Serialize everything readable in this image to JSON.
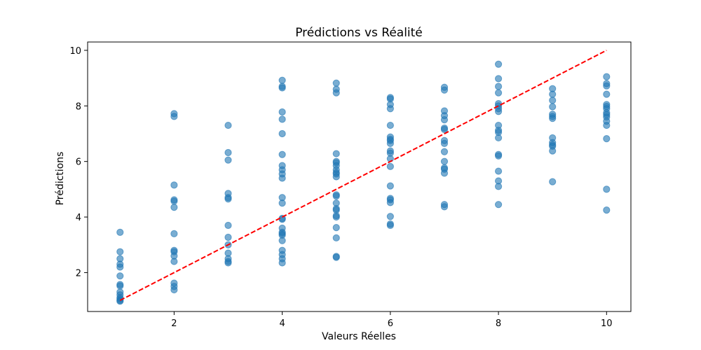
{
  "chart_data": {
    "type": "scatter",
    "title": "Prédictions vs Réalité",
    "xlabel": "Valeurs Réelles",
    "ylabel": "Prédictions",
    "xlim": [
      0.4,
      10.45
    ],
    "ylim": [
      0.6,
      10.3
    ],
    "xticks": [
      2,
      4,
      6,
      8,
      10
    ],
    "yticks": [
      2,
      4,
      6,
      8,
      10
    ],
    "grid": false,
    "legend": "none",
    "point_color": "#1f77b4",
    "point_alpha": 0.6,
    "reference_line": {
      "x": [
        1,
        10
      ],
      "y": [
        1,
        10
      ],
      "color": "#ff0000",
      "style": "dashed"
    },
    "series": [
      {
        "points": [
          [
            1,
            3.45
          ],
          [
            1,
            2.75
          ],
          [
            1,
            2.5
          ],
          [
            1,
            2.3
          ],
          [
            1,
            2.2
          ],
          [
            1,
            1.88
          ],
          [
            1,
            1.57
          ],
          [
            1,
            1.52
          ],
          [
            1,
            1.3
          ],
          [
            1,
            1.2
          ],
          [
            1,
            1.1
          ],
          [
            1,
            1.05
          ],
          [
            1,
            1.0
          ],
          [
            1,
            0.97
          ],
          [
            2,
            7.72
          ],
          [
            2,
            7.62
          ],
          [
            2,
            5.15
          ],
          [
            2,
            4.62
          ],
          [
            2,
            4.57
          ],
          [
            2,
            4.35
          ],
          [
            2,
            3.4
          ],
          [
            2,
            2.8
          ],
          [
            2,
            2.75
          ],
          [
            2,
            2.6
          ],
          [
            2,
            2.4
          ],
          [
            2,
            1.62
          ],
          [
            2,
            1.5
          ],
          [
            2,
            1.38
          ],
          [
            3,
            7.3
          ],
          [
            3,
            6.32
          ],
          [
            3,
            6.05
          ],
          [
            3,
            4.85
          ],
          [
            3,
            4.7
          ],
          [
            3,
            4.65
          ],
          [
            3,
            3.7
          ],
          [
            3,
            3.27
          ],
          [
            3,
            3.0
          ],
          [
            3,
            2.7
          ],
          [
            3,
            2.5
          ],
          [
            3,
            2.4
          ],
          [
            3,
            2.35
          ],
          [
            4,
            8.92
          ],
          [
            4,
            8.7
          ],
          [
            4,
            8.65
          ],
          [
            4,
            7.78
          ],
          [
            4,
            7.52
          ],
          [
            4,
            7.0
          ],
          [
            4,
            6.25
          ],
          [
            4,
            5.85
          ],
          [
            4,
            5.7
          ],
          [
            4,
            5.55
          ],
          [
            4,
            5.4
          ],
          [
            4,
            4.7
          ],
          [
            4,
            4.5
          ],
          [
            4,
            3.95
          ],
          [
            4,
            3.92
          ],
          [
            4,
            3.6
          ],
          [
            4,
            3.45
          ],
          [
            4,
            3.4
          ],
          [
            4,
            3.35
          ],
          [
            4,
            3.15
          ],
          [
            4,
            2.8
          ],
          [
            4,
            2.65
          ],
          [
            4,
            2.5
          ],
          [
            4,
            2.35
          ],
          [
            5,
            8.82
          ],
          [
            5,
            8.6
          ],
          [
            5,
            8.47
          ],
          [
            5,
            6.28
          ],
          [
            5,
            6.0
          ],
          [
            5,
            5.95
          ],
          [
            5,
            5.85
          ],
          [
            5,
            5.7
          ],
          [
            5,
            5.6
          ],
          [
            5,
            5.55
          ],
          [
            5,
            5.45
          ],
          [
            5,
            4.8
          ],
          [
            5,
            4.75
          ],
          [
            5,
            4.5
          ],
          [
            5,
            4.3
          ],
          [
            5,
            4.25
          ],
          [
            5,
            4.05
          ],
          [
            5,
            4.0
          ],
          [
            5,
            3.62
          ],
          [
            5,
            3.25
          ],
          [
            5,
            2.58
          ],
          [
            5,
            2.55
          ],
          [
            6,
            8.3
          ],
          [
            6,
            8.25
          ],
          [
            6,
            8.05
          ],
          [
            6,
            7.9
          ],
          [
            6,
            7.3
          ],
          [
            6,
            6.88
          ],
          [
            6,
            6.8
          ],
          [
            6,
            6.75
          ],
          [
            6,
            6.65
          ],
          [
            6,
            6.38
          ],
          [
            6,
            6.3
          ],
          [
            6,
            6.1
          ],
          [
            6,
            5.82
          ],
          [
            6,
            5.12
          ],
          [
            6,
            4.67
          ],
          [
            6,
            4.62
          ],
          [
            6,
            4.52
          ],
          [
            6,
            4.02
          ],
          [
            6,
            3.75
          ],
          [
            6,
            3.7
          ],
          [
            7,
            8.67
          ],
          [
            7,
            8.57
          ],
          [
            7,
            7.82
          ],
          [
            7,
            7.65
          ],
          [
            7,
            7.5
          ],
          [
            7,
            7.2
          ],
          [
            7,
            7.15
          ],
          [
            7,
            6.75
          ],
          [
            7,
            6.65
          ],
          [
            7,
            6.35
          ],
          [
            7,
            6.0
          ],
          [
            7,
            5.77
          ],
          [
            7,
            5.72
          ],
          [
            7,
            5.58
          ],
          [
            7,
            4.45
          ],
          [
            7,
            4.37
          ],
          [
            8,
            9.5
          ],
          [
            8,
            8.98
          ],
          [
            8,
            8.7
          ],
          [
            8,
            8.47
          ],
          [
            8,
            8.08
          ],
          [
            8,
            8.0
          ],
          [
            8,
            7.9
          ],
          [
            8,
            7.8
          ],
          [
            8,
            7.3
          ],
          [
            8,
            7.12
          ],
          [
            8,
            7.05
          ],
          [
            8,
            6.85
          ],
          [
            8,
            6.25
          ],
          [
            8,
            6.2
          ],
          [
            8,
            5.65
          ],
          [
            8,
            5.3
          ],
          [
            8,
            5.1
          ],
          [
            8,
            4.45
          ],
          [
            9,
            8.62
          ],
          [
            9,
            8.42
          ],
          [
            9,
            8.2
          ],
          [
            9,
            7.97
          ],
          [
            9,
            7.7
          ],
          [
            9,
            7.62
          ],
          [
            9,
            7.55
          ],
          [
            9,
            6.85
          ],
          [
            9,
            6.68
          ],
          [
            9,
            6.6
          ],
          [
            9,
            6.55
          ],
          [
            9,
            6.38
          ],
          [
            9,
            5.27
          ],
          [
            10,
            9.05
          ],
          [
            10,
            8.8
          ],
          [
            10,
            8.72
          ],
          [
            10,
            8.42
          ],
          [
            10,
            8.05
          ],
          [
            10,
            7.98
          ],
          [
            10,
            7.9
          ],
          [
            10,
            7.75
          ],
          [
            10,
            7.68
          ],
          [
            10,
            7.6
          ],
          [
            10,
            7.45
          ],
          [
            10,
            7.3
          ],
          [
            10,
            6.82
          ],
          [
            10,
            5.0
          ],
          [
            10,
            4.25
          ]
        ]
      }
    ]
  }
}
